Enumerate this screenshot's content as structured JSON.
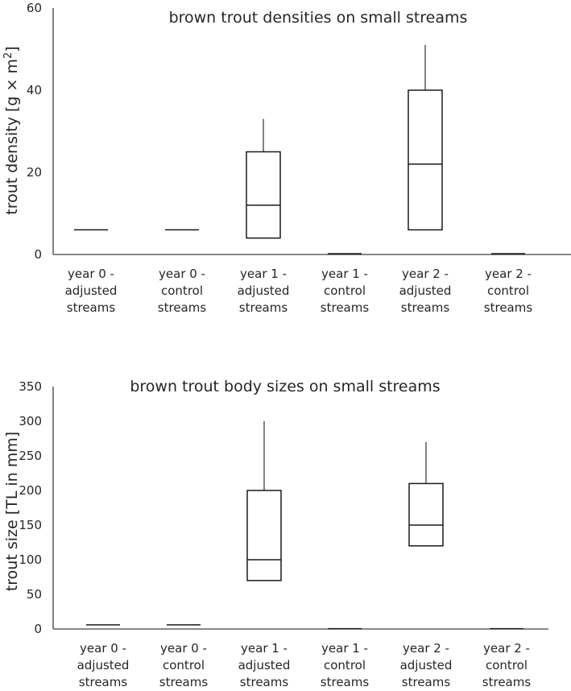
{
  "chart_data": [
    {
      "type": "box",
      "title": "brown trout densities on small streams",
      "ylabel_main": "trout density [g × m",
      "ylabel_sup": "2",
      "ylabel_end": "]",
      "ylim": [
        0,
        60
      ],
      "yticks": [
        "0",
        "20",
        "40",
        "60"
      ],
      "categories": [
        [
          "year 0 -",
          "adjusted",
          "streams"
        ],
        [
          "year 0 -",
          "control",
          "streams"
        ],
        [
          "year 1 -",
          "adjusted",
          "streams"
        ],
        [
          "year 1 -",
          "control",
          "streams"
        ],
        [
          "year 2 -",
          "adjusted",
          "streams"
        ],
        [
          "year 2 -",
          "control",
          "streams"
        ]
      ],
      "boxes": [
        {
          "q1": 6,
          "median": 6,
          "q3": 6,
          "max": 6
        },
        {
          "q1": 6,
          "median": 6,
          "q3": 6,
          "max": 6
        },
        {
          "q1": 4,
          "median": 12,
          "q3": 25,
          "max": 33
        },
        {
          "q1": 0.2,
          "median": 0.2,
          "q3": 0.2,
          "max": 0.2
        },
        {
          "q1": 6,
          "median": 22,
          "q3": 40,
          "max": 51
        },
        {
          "q1": 0.2,
          "median": 0.2,
          "q3": 0.2,
          "max": 0.2
        }
      ]
    },
    {
      "type": "box",
      "title": "brown trout body sizes on small streams",
      "ylabel_main": "trout size [TL in mm]",
      "ylim": [
        0,
        350
      ],
      "yticks": [
        "0",
        "50",
        "100",
        "150",
        "200",
        "250",
        "300",
        "350"
      ],
      "categories": [
        [
          "year 0 -",
          "adjusted",
          "streams"
        ],
        [
          "year 0 -",
          "control",
          "streams"
        ],
        [
          "year 1 -",
          "adjusted",
          "streams"
        ],
        [
          "year 1 -",
          "control",
          "streams"
        ],
        [
          "year 2 -",
          "adjusted",
          "streams"
        ],
        [
          "year 2 -",
          "control",
          "streams"
        ]
      ],
      "boxes": [
        {
          "q1": 6,
          "median": 6,
          "q3": 6,
          "max": 6
        },
        {
          "q1": 6,
          "median": 6,
          "q3": 6,
          "max": 6
        },
        {
          "q1": 70,
          "median": 100,
          "q3": 200,
          "max": 300
        },
        {
          "q1": 0.5,
          "median": 0.5,
          "q3": 0.5,
          "max": 0.5
        },
        {
          "q1": 120,
          "median": 150,
          "q3": 210,
          "max": 270
        },
        {
          "q1": 0.5,
          "median": 0.5,
          "q3": 0.5,
          "max": 0.5
        }
      ]
    }
  ]
}
